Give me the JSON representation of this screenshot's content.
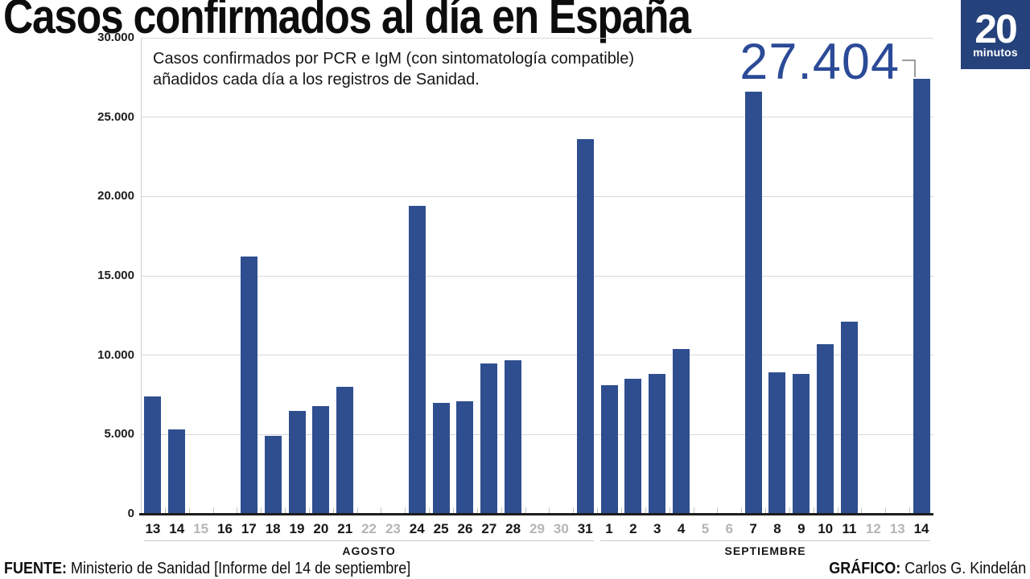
{
  "header": {
    "title": "Casos confirmados al día en España",
    "logo": {
      "number": "20",
      "word": "minutos"
    }
  },
  "chart_data": {
    "type": "bar",
    "title": "Casos confirmados al día en España",
    "subtitle_line1": "Casos confirmados por PCR e IgM (con sintomatología compatible)",
    "subtitle_line2": "añadidos cada día a los registros de Sanidad.",
    "xlabel": "",
    "ylabel": "",
    "ylim": [
      0,
      30000
    ],
    "yticks": [
      0,
      5000,
      10000,
      15000,
      20000,
      25000,
      30000
    ],
    "grid": true,
    "legend": "none",
    "highlight": {
      "label": "27.404",
      "day": "14",
      "month": "SEPTIEMBRE",
      "value": 27404
    },
    "months": [
      {
        "label": "AGOSTO"
      },
      {
        "label": "SEPTIEMBRE"
      }
    ],
    "points": [
      {
        "month": "AGOSTO",
        "day": "13",
        "value": 7400,
        "muted": false
      },
      {
        "month": "AGOSTO",
        "day": "14",
        "value": 5300,
        "muted": false
      },
      {
        "month": "AGOSTO",
        "day": "15",
        "value": null,
        "muted": true
      },
      {
        "month": "AGOSTO",
        "day": "16",
        "value": null,
        "muted": false
      },
      {
        "month": "AGOSTO",
        "day": "17",
        "value": 16200,
        "muted": false
      },
      {
        "month": "AGOSTO",
        "day": "18",
        "value": 4900,
        "muted": false
      },
      {
        "month": "AGOSTO",
        "day": "19",
        "value": 6500,
        "muted": false
      },
      {
        "month": "AGOSTO",
        "day": "20",
        "value": 6800,
        "muted": false
      },
      {
        "month": "AGOSTO",
        "day": "21",
        "value": 8000,
        "muted": false
      },
      {
        "month": "AGOSTO",
        "day": "22",
        "value": null,
        "muted": true
      },
      {
        "month": "AGOSTO",
        "day": "23",
        "value": null,
        "muted": true
      },
      {
        "month": "AGOSTO",
        "day": "24",
        "value": 19400,
        "muted": false
      },
      {
        "month": "AGOSTO",
        "day": "25",
        "value": 7000,
        "muted": false
      },
      {
        "month": "AGOSTO",
        "day": "26",
        "value": 7100,
        "muted": false
      },
      {
        "month": "AGOSTO",
        "day": "27",
        "value": 9500,
        "muted": false
      },
      {
        "month": "AGOSTO",
        "day": "28",
        "value": 9700,
        "muted": false
      },
      {
        "month": "AGOSTO",
        "day": "29",
        "value": null,
        "muted": true
      },
      {
        "month": "AGOSTO",
        "day": "30",
        "value": null,
        "muted": true
      },
      {
        "month": "AGOSTO",
        "day": "31",
        "value": 23600,
        "muted": false
      },
      {
        "month": "SEPTIEMBRE",
        "day": "1",
        "value": 8100,
        "muted": false
      },
      {
        "month": "SEPTIEMBRE",
        "day": "2",
        "value": 8500,
        "muted": false
      },
      {
        "month": "SEPTIEMBRE",
        "day": "3",
        "value": 8800,
        "muted": false
      },
      {
        "month": "SEPTIEMBRE",
        "day": "4",
        "value": 10400,
        "muted": false
      },
      {
        "month": "SEPTIEMBRE",
        "day": "5",
        "value": null,
        "muted": true
      },
      {
        "month": "SEPTIEMBRE",
        "day": "6",
        "value": null,
        "muted": true
      },
      {
        "month": "SEPTIEMBRE",
        "day": "7",
        "value": 26600,
        "muted": false
      },
      {
        "month": "SEPTIEMBRE",
        "day": "8",
        "value": 8900,
        "muted": false
      },
      {
        "month": "SEPTIEMBRE",
        "day": "9",
        "value": 8800,
        "muted": false
      },
      {
        "month": "SEPTIEMBRE",
        "day": "10",
        "value": 10700,
        "muted": false
      },
      {
        "month": "SEPTIEMBRE",
        "day": "11",
        "value": 12100,
        "muted": false
      },
      {
        "month": "SEPTIEMBRE",
        "day": "12",
        "value": null,
        "muted": true
      },
      {
        "month": "SEPTIEMBRE",
        "day": "13",
        "value": null,
        "muted": true
      },
      {
        "month": "SEPTIEMBRE",
        "day": "14",
        "value": 27404,
        "muted": false
      }
    ],
    "colors": {
      "bar": "#2f4e8f",
      "highlight_text": "#2b4a97",
      "muted_label": "#b5b5b5",
      "grid": "#d8d8d8",
      "y_axis": "#cfcfcf",
      "axis": "#1d1d1b",
      "leader": "#9c9c9c",
      "logo_bg": "#26427c"
    }
  },
  "footer": {
    "source_label": "FUENTE:",
    "source_text": " Ministerio de Sanidad [Informe del 14 de septiembre]",
    "credit_label": "GRÁFICO:",
    "credit_text": " Carlos G. Kindelán"
  }
}
